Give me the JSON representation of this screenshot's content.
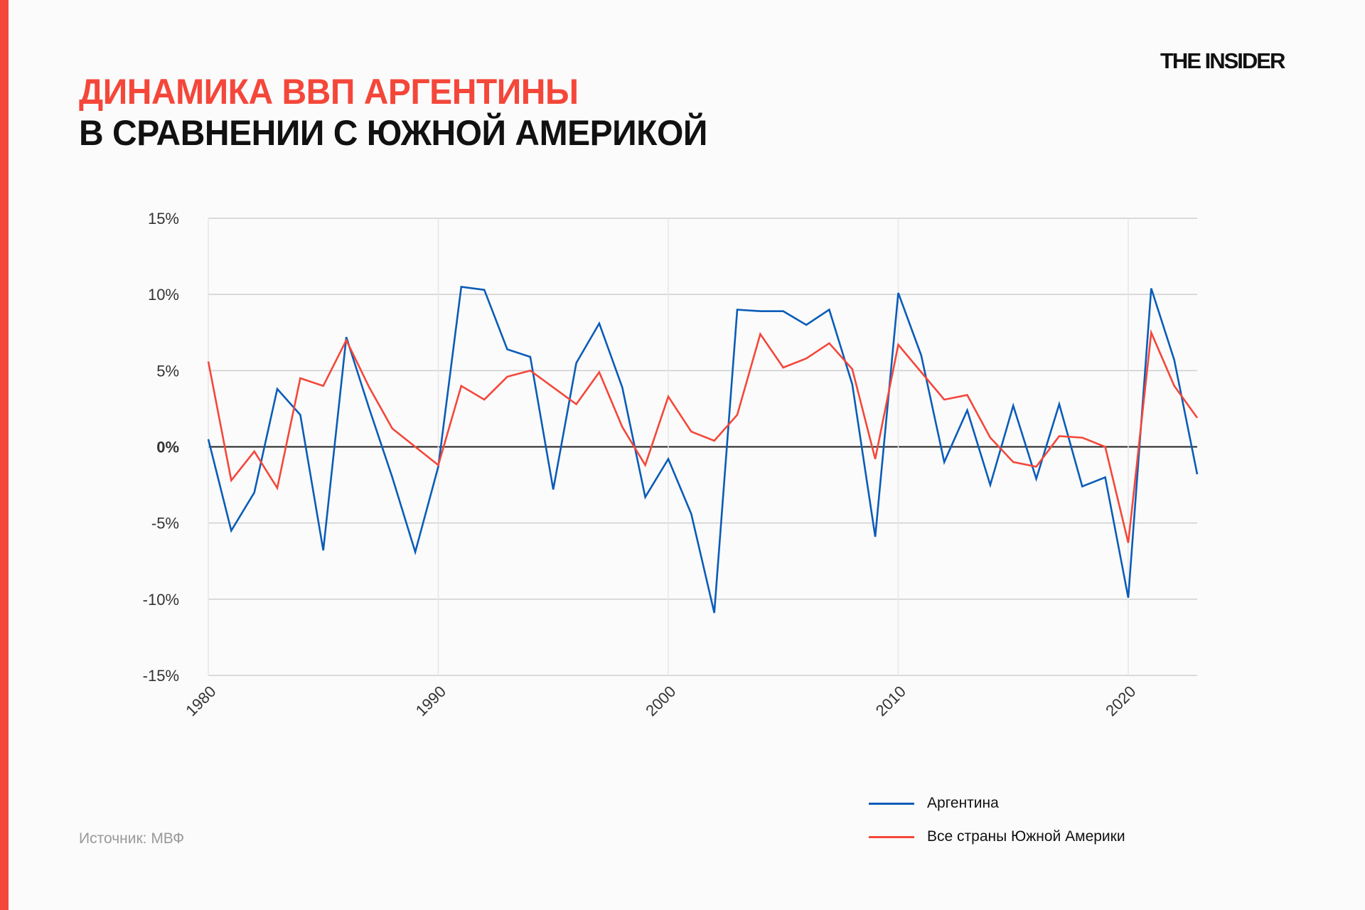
{
  "header": {
    "title_line1": "ДИНАМИКА ВВП АРГЕНТИНЫ",
    "title_line2": "В СРАВНЕНИИ С ЮЖНОЙ АМЕРИКОЙ",
    "logo": "THE INSIDER"
  },
  "footer": {
    "source": "Источник: МВФ"
  },
  "colors": {
    "accent": "#f4473a",
    "argentina": "#0a5cb8",
    "south_america": "#f4473a",
    "zero_line": "#222222",
    "grid": "#cfcfcf"
  },
  "chart_data": {
    "type": "line",
    "title": "ДИНАМИКА ВВП АРГЕНТИНЫ В СРАВНЕНИИ С ЮЖНОЙ АМЕРИКОЙ",
    "xlabel": "",
    "ylabel": "",
    "xlim": [
      1980,
      2023
    ],
    "ylim": [
      -15,
      15
    ],
    "x_ticks": [
      "1980",
      "1990",
      "2000",
      "2010",
      "2020"
    ],
    "y_ticks": [
      "15%",
      "10%",
      "5%",
      "0%",
      "-5%",
      "-10%",
      "-15%"
    ],
    "grid": true,
    "legend_position": "bottom-right",
    "x": [
      1980,
      1981,
      1982,
      1983,
      1984,
      1985,
      1986,
      1987,
      1988,
      1989,
      1990,
      1991,
      1992,
      1993,
      1994,
      1995,
      1996,
      1997,
      1998,
      1999,
      2000,
      2001,
      2002,
      2003,
      2004,
      2005,
      2006,
      2007,
      2008,
      2009,
      2010,
      2011,
      2012,
      2013,
      2014,
      2015,
      2016,
      2017,
      2018,
      2019,
      2020,
      2021,
      2022,
      2023
    ],
    "series": [
      {
        "name": "Аргентина",
        "color": "#0a5cb8",
        "values": [
          0.5,
          -5.5,
          -3.0,
          3.8,
          2.1,
          -6.8,
          7.2,
          2.5,
          -2.0,
          -6.9,
          -1.3,
          10.5,
          10.3,
          6.4,
          5.9,
          -2.8,
          5.5,
          8.1,
          3.9,
          -3.3,
          -0.8,
          -4.4,
          -10.9,
          9.0,
          8.9,
          8.9,
          8.0,
          9.0,
          4.1,
          -5.9,
          10.1,
          6.0,
          -1.0,
          2.4,
          -2.5,
          2.7,
          -2.1,
          2.8,
          -2.6,
          -2.0,
          -9.9,
          10.4,
          5.7,
          -1.8
        ]
      },
      {
        "name": "Все страны Южной Америки",
        "color": "#f4473a",
        "values": [
          5.6,
          -2.2,
          -0.3,
          -2.7,
          4.5,
          4.0,
          7.0,
          3.9,
          1.2,
          0.0,
          -1.2,
          4.0,
          3.1,
          4.6,
          5.0,
          3.9,
          2.8,
          4.9,
          1.3,
          -1.2,
          3.3,
          1.0,
          0.4,
          2.1,
          7.4,
          5.2,
          5.8,
          6.8,
          5.1,
          -0.8,
          6.7,
          4.9,
          3.1,
          3.4,
          0.6,
          -1.0,
          -1.3,
          0.7,
          0.6,
          0.0,
          -6.3,
          7.5,
          4.0,
          1.9
        ]
      }
    ]
  }
}
